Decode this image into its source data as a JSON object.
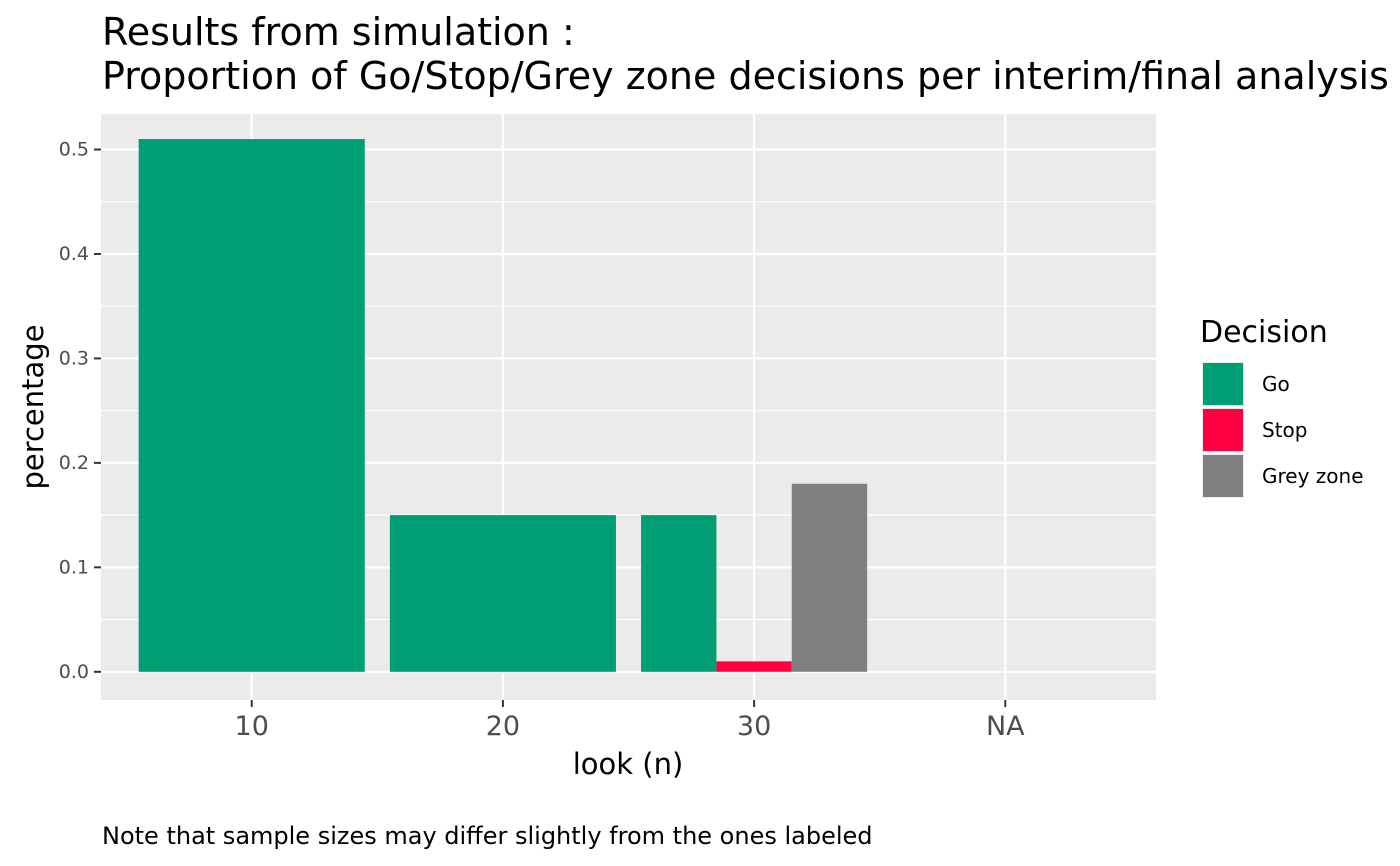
{
  "chart_data": {
    "type": "bar",
    "title": "Results from simulation :",
    "subtitle": "Proportion of Go/Stop/Grey zone decisions per interim/final analysis",
    "xlabel": "look (n)",
    "ylabel": "percentage",
    "caption": "Note that sample sizes may differ slightly from the ones labeled",
    "categories": [
      "10",
      "20",
      "30",
      "NA"
    ],
    "legend_title": "Decision",
    "legend_position": "right",
    "grid": true,
    "ylim": [
      -0.027,
      0.534
    ],
    "yticks": [
      0.0,
      0.1,
      0.2,
      0.3,
      0.4,
      0.5
    ],
    "ytick_labels": [
      "0.0",
      "0.1",
      "0.2",
      "0.3",
      "0.4",
      "0.5"
    ],
    "series": [
      {
        "name": "Go",
        "color": "#009E73",
        "values": [
          0.51,
          0.15,
          0.15,
          null
        ]
      },
      {
        "name": "Stop",
        "color": "#FF0040",
        "values": [
          null,
          null,
          0.01,
          null
        ]
      },
      {
        "name": "Grey zone",
        "color": "#808080",
        "values": [
          null,
          null,
          0.18,
          null
        ]
      }
    ]
  }
}
